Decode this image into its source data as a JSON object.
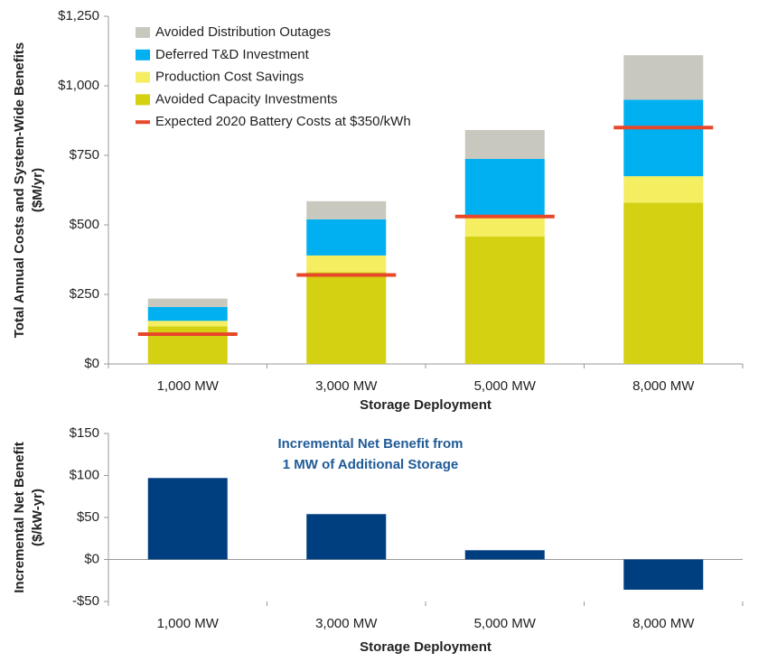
{
  "chart_data": [
    {
      "type": "stacked_bar",
      "ylabel": [
        "Total Annual Costs and System-Wide Benefits",
        "($M/yr)"
      ],
      "xlabel": "Storage Deployment",
      "categories": [
        "1,000 MW",
        "3,000 MW",
        "5,000 MW",
        "8,000 MW"
      ],
      "series": [
        {
          "name": "Avoided Capacity Investments",
          "color": "#d4d012",
          "values": [
            135,
            330,
            458,
            580
          ]
        },
        {
          "name": "Production Cost Savings",
          "color": "#f4ee60",
          "values": [
            20,
            60,
            72,
            95
          ]
        },
        {
          "name": "Deferred T&D Investment",
          "color": "#00b0f0",
          "values": [
            50,
            130,
            207,
            275
          ]
        },
        {
          "name": "Avoided Distribution Outages",
          "color": "#c8c8be",
          "values": [
            30,
            65,
            104,
            160
          ]
        },
        {
          "name": "Expected 2020 Battery Costs at $350/kWh",
          "color": "#e8482a",
          "type": "marker",
          "values": [
            107,
            320,
            530,
            850
          ]
        }
      ],
      "ylim": [
        0,
        1250
      ],
      "yticks": [
        {
          "value": 0,
          "label": "$0"
        },
        {
          "value": 250,
          "label": "$250"
        },
        {
          "value": 500,
          "label": "$500"
        },
        {
          "value": 750,
          "label": "$750"
        },
        {
          "value": 1000,
          "label": "$1,000"
        },
        {
          "value": 1250,
          "label": "$1,250"
        }
      ],
      "legend": "upper left",
      "grid": false
    },
    {
      "type": "bar",
      "title": [
        "Incremental Net Benefit from",
        "1 MW of Additional Storage"
      ],
      "ylabel": [
        "Incremental Net Benefit",
        "($/kW-yr)"
      ],
      "xlabel": "Storage Deployment",
      "categories": [
        "1,000 MW",
        "3,000 MW",
        "5,000 MW",
        "8,000 MW"
      ],
      "values": [
        97,
        54,
        11,
        -36
      ],
      "color": "#003f7f",
      "ylim": [
        -50,
        150
      ],
      "yticks": [
        {
          "value": -50,
          "label": "-$50"
        },
        {
          "value": 0,
          "label": "$0"
        },
        {
          "value": 50,
          "label": "$50"
        },
        {
          "value": 100,
          "label": "$100"
        },
        {
          "value": 150,
          "label": "$150"
        }
      ],
      "grid": false
    }
  ]
}
